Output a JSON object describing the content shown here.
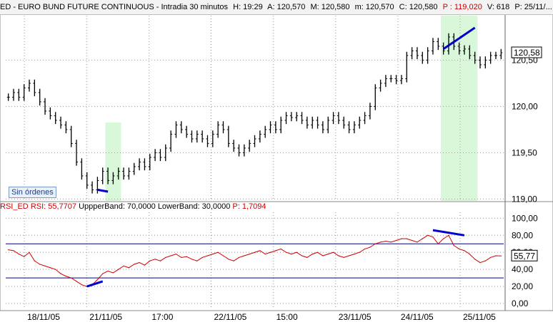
{
  "header": {
    "symbol": "ED - EURO BUND FUTURE CONTINUOUS - Intradia 30 minutos",
    "h": "H: 19:29",
    "a": "A: 120,570",
    "m": "M: 120,580",
    "mm": "m: 120,570",
    "c": "C: 120,580",
    "p": "P : 119,020",
    "v": "V: 618",
    "date": "P: 25/11/..."
  },
  "badge": "Sin órdenes",
  "indicator": {
    "name": "RSI_ED",
    "rsi": "RSI: 55,7707",
    "upper": "UppperBand: 70,0000",
    "lower": "LowerBand: 30,0000",
    "p": "P: 1,7094"
  },
  "colors": {
    "price": "#000000",
    "rsi": "#d00000",
    "trend": "#0000cc",
    "band": "#000080",
    "highlight": "#d9f7d9"
  },
  "chart_data": [
    {
      "type": "bar",
      "title": "ED - EURO BUND FUTURE CONTINUOUS - Intradia 30 minutos",
      "ylim": [
        118.98,
        120.98
      ],
      "y_ticks": [
        "120,50",
        "120,00",
        "119,50",
        "119,00"
      ],
      "last_value": "120,58",
      "x_labels": [
        "18/11/05",
        "21/11/05",
        "17:00",
        "22/11/05",
        "15:00",
        "23/11/05",
        "24/11/05",
        "25/11/05"
      ],
      "close": [
        120.1,
        120.15,
        120.1,
        120.2,
        120.25,
        120.15,
        120.05,
        119.95,
        119.9,
        119.85,
        119.8,
        119.75,
        119.6,
        119.4,
        119.25,
        119.15,
        119.1,
        119.2,
        119.3,
        119.2,
        119.25,
        119.3,
        119.25,
        119.3,
        119.35,
        119.4,
        119.35,
        119.45,
        119.5,
        119.45,
        119.55,
        119.7,
        119.8,
        119.75,
        119.7,
        119.65,
        119.7,
        119.65,
        119.6,
        119.7,
        119.8,
        119.75,
        119.6,
        119.55,
        119.5,
        119.55,
        119.6,
        119.65,
        119.7,
        119.75,
        119.8,
        119.75,
        119.85,
        119.9,
        119.88,
        119.9,
        119.85,
        119.8,
        119.85,
        119.8,
        119.75,
        119.85,
        119.9,
        119.85,
        119.8,
        119.75,
        119.8,
        119.85,
        119.9,
        120.0,
        120.2,
        120.25,
        120.3,
        120.3,
        120.28,
        120.3,
        120.55,
        120.6,
        120.55,
        120.5,
        120.6,
        120.7,
        120.65,
        120.6,
        120.75,
        120.65,
        120.6,
        120.62,
        120.55,
        120.5,
        120.45,
        120.5,
        120.55,
        120.55,
        120.58
      ],
      "highlights": [
        {
          "from": 19,
          "to": 21
        },
        {
          "from": 83,
          "to": 89
        }
      ]
    },
    {
      "type": "line",
      "title": "RSI_ED",
      "ylim": [
        -5,
        107
      ],
      "y_ticks": [
        "100,00",
        "80,00",
        "60,00",
        "40,00",
        "20,00",
        "0,00"
      ],
      "last_value": "55,77",
      "upper_band": 70,
      "lower_band": 30,
      "values": [
        63,
        62,
        58,
        55,
        60,
        50,
        46,
        44,
        42,
        40,
        35,
        32,
        30,
        26,
        22,
        20,
        22,
        28,
        35,
        38,
        36,
        40,
        44,
        42,
        46,
        48,
        45,
        50,
        52,
        50,
        54,
        56,
        58,
        54,
        55,
        52,
        50,
        54,
        56,
        58,
        60,
        56,
        52,
        50,
        54,
        56,
        58,
        60,
        62,
        58,
        60,
        62,
        64,
        60,
        58,
        60,
        56,
        54,
        58,
        60,
        56,
        58,
        60,
        56,
        54,
        56,
        58,
        60,
        64,
        66,
        70,
        72,
        73,
        72,
        74,
        76,
        76,
        74,
        72,
        76,
        80,
        78,
        70,
        76,
        80,
        68,
        64,
        62,
        58,
        52,
        48,
        50,
        54,
        56,
        55.77
      ],
      "highlights": [
        {
          "from": 83,
          "to": 89
        }
      ]
    }
  ]
}
